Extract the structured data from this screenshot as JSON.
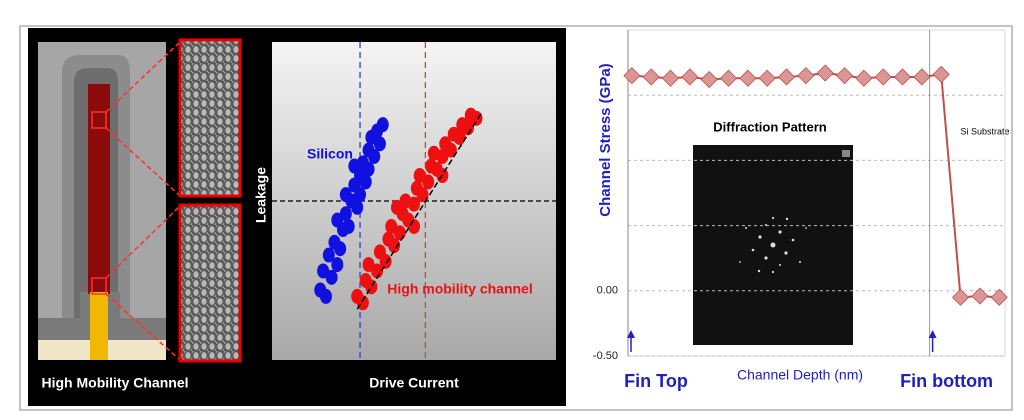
{
  "diagram": {
    "label": "High Mobility Channel"
  },
  "chart_data": [
    {
      "type": "scatter",
      "x_label": "Drive Current",
      "y_label": "Leakage",
      "xlim": [
        0,
        100
      ],
      "ylim": [
        0,
        100
      ],
      "vlines": [
        {
          "x": 31,
          "color": "#3a3ad0"
        },
        {
          "x": 54,
          "color": "#d84040"
        }
      ],
      "hline": 50,
      "series": [
        {
          "name": "Silicon",
          "color": "#1010e0",
          "x": [
            17,
            19,
            18,
            21,
            20,
            23,
            22,
            24,
            25,
            23,
            26,
            27,
            28,
            26,
            29,
            30,
            31,
            29,
            32,
            33,
            34,
            35,
            36,
            37,
            38,
            39,
            34,
            31
          ],
          "y": [
            22,
            20,
            28,
            26,
            33,
            30,
            37,
            35,
            41,
            44,
            46,
            42,
            50,
            52,
            55,
            48,
            58,
            61,
            62,
            56,
            66,
            70,
            64,
            72,
            68,
            74,
            60,
            52
          ]
        },
        {
          "name": "High mobility channel",
          "color": "#ee1010",
          "x": [
            30,
            32,
            33,
            35,
            34,
            37,
            38,
            40,
            41,
            43,
            42,
            45,
            46,
            48,
            47,
            50,
            51,
            53,
            52,
            55,
            56,
            58,
            57,
            60,
            61,
            63,
            64,
            66,
            67,
            69,
            70,
            72,
            50,
            44,
            60
          ],
          "y": [
            20,
            18,
            25,
            23,
            30,
            28,
            34,
            31,
            38,
            36,
            42,
            40,
            46,
            44,
            50,
            49,
            54,
            52,
            58,
            56,
            61,
            60,
            65,
            64,
            68,
            66,
            71,
            70,
            74,
            73,
            77,
            76,
            42,
            48,
            58
          ]
        }
      ]
    },
    {
      "type": "line",
      "y_label": "Channel  Stress  (GPa)",
      "x_label": "Channel Depth (nm)",
      "xlim": [
        0,
        19.5
      ],
      "ylim": [
        -0.5,
        2.0
      ],
      "yticks": [
        {
          "value": -0.5,
          "label": "-0.50"
        },
        {
          "value": 0,
          "label": "0.00"
        },
        {
          "value": 0.5,
          "label": null
        },
        {
          "value": 1.0,
          "label": null
        },
        {
          "value": 1.5,
          "label": null
        }
      ],
      "grid": true,
      "x": [
        0.2,
        1.2,
        2.2,
        3.2,
        4.2,
        5.2,
        6.2,
        7.2,
        8.2,
        9.2,
        10.2,
        11.2,
        12.2,
        13.2,
        14.2,
        15.2,
        16.2,
        17.2,
        18.2,
        19.2
      ],
      "series": [
        {
          "color": "#c0504d",
          "marker_color": "#d99694",
          "values": [
            1.65,
            1.64,
            1.63,
            1.64,
            1.62,
            1.63,
            1.63,
            1.63,
            1.64,
            1.65,
            1.67,
            1.65,
            1.63,
            1.64,
            1.64,
            1.64,
            1.66,
            -0.05,
            -0.04,
            -0.05
          ]
        }
      ],
      "annotations": [
        {
          "text": "Fin Top",
          "x": 0
        },
        {
          "text": "Fin bottom",
          "x": 15.6
        },
        {
          "text": "Si Substrate"
        }
      ],
      "inset": {
        "title": "Diffraction Pattern"
      }
    }
  ]
}
